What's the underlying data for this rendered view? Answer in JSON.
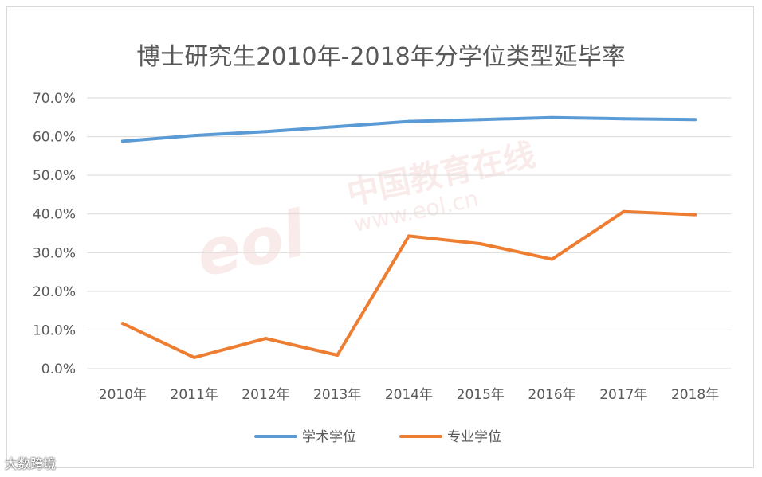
{
  "chart_data": {
    "type": "line",
    "title": "博士研究生2010年-2018年分学位类型延毕率",
    "categories": [
      "2010年",
      "2011年",
      "2012年",
      "2013年",
      "2014年",
      "2015年",
      "2016年",
      "2017年",
      "2018年"
    ],
    "y_ticks": [
      "0.0%",
      "10.0%",
      "20.0%",
      "30.0%",
      "40.0%",
      "50.0%",
      "60.0%",
      "70.0%"
    ],
    "ylim": [
      0,
      70
    ],
    "grid": true,
    "legend_position": "bottom",
    "series": [
      {
        "name": "学术学位",
        "color": "#5b9bd5",
        "values": [
          58.8,
          60.3,
          61.3,
          62.6,
          63.9,
          64.4,
          64.9,
          64.6,
          64.4
        ]
      },
      {
        "name": "专业学位",
        "color": "#ed7d31",
        "values": [
          11.7,
          2.9,
          7.8,
          3.5,
          34.3,
          32.3,
          28.3,
          40.6,
          39.8
        ]
      }
    ]
  },
  "watermark": {
    "logo_text": "eol",
    "site_name": "中国教育在线",
    "site_url": "www.eol.cn"
  },
  "corner_mark": "大数跨境"
}
